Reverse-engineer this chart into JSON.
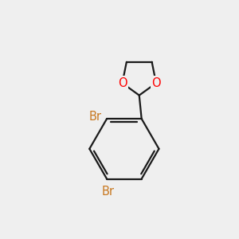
{
  "background_color": "#efefef",
  "bond_color": "#1a1a1a",
  "oxygen_color": "#ff0000",
  "bromine_color": "#c87820",
  "line_width": 1.6,
  "fig_size": [
    3.0,
    3.0
  ],
  "dpi": 100,
  "xlim": [
    0,
    10
  ],
  "ylim": [
    0,
    10
  ]
}
